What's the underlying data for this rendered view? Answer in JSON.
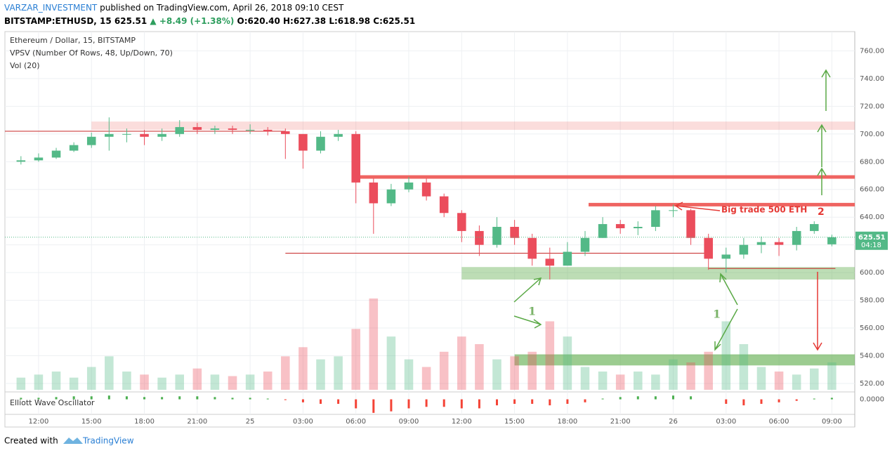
{
  "header": {
    "author": "VARZAR_INVESTMENT",
    "published": "published on TradingView.com, April 26, 2018 09:10 CEST",
    "symbol": "BITSTAMP:ETHUSD, 15",
    "last": "625.51",
    "change": "▲ +8.49 (+1.38%)",
    "ohlc": "O:620.40 H:627.38 L:618.98 C:625.51"
  },
  "legend": [
    "Ethereum / Dollar, 15, BITSTAMP",
    "VPSV (Number Of Rows, 48, Up/Down, 70)",
    "Vol (20)"
  ],
  "footer": {
    "created": "Created with",
    "brand": "TradingView"
  },
  "chart_data": {
    "type": "candlestick",
    "oscillator_title": "Elliott Wave Oscillator",
    "up_color": "#53b987",
    "down_color": "#eb4d5c",
    "x": [
      11,
      12,
      13,
      14,
      15,
      16,
      17,
      18,
      19,
      20,
      21,
      22,
      23,
      24,
      25,
      26,
      27,
      28,
      29,
      30,
      31,
      32,
      33,
      34,
      35,
      36,
      37,
      38,
      39,
      40,
      41,
      42,
      43,
      44,
      45,
      46,
      47,
      48,
      49,
      50,
      51,
      52,
      53,
      54,
      55,
      56,
      57
    ],
    "open": [
      680,
      681,
      683,
      688,
      692,
      698,
      700,
      700,
      698,
      700,
      705,
      703,
      704,
      703,
      703,
      702,
      700,
      688,
      698,
      700,
      665,
      650,
      660,
      665,
      655,
      643,
      630,
      620,
      633,
      625,
      610,
      605,
      615,
      625,
      635,
      632,
      633,
      645,
      645,
      625,
      610,
      613,
      620,
      622,
      620,
      630,
      620.4
    ],
    "high": [
      684,
      686,
      690,
      694,
      701,
      712,
      704,
      703,
      704,
      710,
      708,
      706,
      706,
      707,
      705,
      704,
      700,
      702,
      703,
      702,
      668,
      664,
      669,
      668,
      657,
      645,
      634,
      640,
      638,
      628,
      618,
      622,
      630,
      640,
      638,
      637,
      648,
      649,
      646,
      628,
      618,
      625,
      626,
      625,
      633,
      637,
      627.38
    ],
    "low": [
      678,
      680,
      682,
      687,
      690,
      688,
      694,
      692,
      695,
      698,
      700,
      700,
      700,
      700,
      699,
      682,
      675,
      686,
      695,
      650,
      628,
      648,
      658,
      652,
      640,
      622,
      612,
      618,
      620,
      605,
      595,
      605,
      612,
      625,
      628,
      627,
      630,
      640,
      620,
      602,
      600,
      610,
      614,
      612,
      616,
      628,
      618.98
    ],
    "close": [
      681,
      683,
      688,
      692,
      698,
      700,
      700,
      698,
      700,
      705,
      703,
      704,
      703,
      703,
      702,
      700,
      688,
      698,
      700,
      665,
      650,
      660,
      665,
      655,
      643,
      630,
      620,
      633,
      625,
      610,
      605,
      615,
      625,
      635,
      632,
      633,
      645,
      645,
      625,
      610,
      613,
      620,
      622,
      620,
      630,
      635,
      625.51
    ],
    "volume": [
      8,
      10,
      12,
      8,
      15,
      22,
      12,
      10,
      8,
      10,
      14,
      10,
      9,
      10,
      12,
      22,
      28,
      20,
      22,
      40,
      60,
      35,
      20,
      15,
      25,
      35,
      30,
      20,
      22,
      25,
      45,
      35,
      15,
      12,
      10,
      12,
      10,
      20,
      18,
      25,
      45,
      30,
      15,
      12,
      10,
      14,
      18
    ],
    "oscillator": [
      1,
      1,
      1.5,
      2,
      2,
      2.5,
      2,
      1.5,
      1.5,
      2,
      2,
      1.5,
      1,
      1,
      0.5,
      -0.5,
      -2,
      -3,
      -3,
      -6,
      -9,
      -8,
      -6,
      -5,
      -5,
      -6,
      -6,
      -4,
      -3,
      -3,
      -4,
      -3,
      -2,
      0.5,
      1.5,
      2,
      2,
      2.5,
      2,
      0,
      -3,
      -4,
      -3,
      -2,
      -1,
      0.5,
      1
    ],
    "osc_ylim": [
      -10,
      4
    ],
    "osc_yticks": [
      {
        "value": 0,
        "label": "0.0000"
      }
    ],
    "last_price": {
      "value": 625.51,
      "label": "625.51",
      "countdown": "04:18"
    },
    "xlim": [
      10.09,
      58.3
    ],
    "xticks": [
      {
        "value": 12,
        "label": "12:00"
      },
      {
        "value": 15,
        "label": "15:00"
      },
      {
        "value": 18,
        "label": "18:00"
      },
      {
        "value": 21,
        "label": "21:00"
      },
      {
        "value": 24,
        "label": "25"
      },
      {
        "value": 27,
        "label": "03:00"
      },
      {
        "value": 30,
        "label": "06:00"
      },
      {
        "value": 33,
        "label": "09:00"
      },
      {
        "value": 36,
        "label": "12:00"
      },
      {
        "value": 39,
        "label": "15:00"
      },
      {
        "value": 42,
        "label": "18:00"
      },
      {
        "value": 45,
        "label": "21:00"
      },
      {
        "value": 48,
        "label": "26"
      },
      {
        "value": 51,
        "label": "03:00"
      },
      {
        "value": 54,
        "label": "06:00"
      },
      {
        "value": 57,
        "label": "09:00"
      }
    ],
    "ylim": [
      513.9,
      773.9
    ],
    "yticks": [
      {
        "value": 520,
        "label": "520.00"
      },
      {
        "value": 540,
        "label": "540.00"
      },
      {
        "value": 560,
        "label": "560.00"
      },
      {
        "value": 580,
        "label": "580.00"
      },
      {
        "value": 600,
        "label": "600.00"
      },
      {
        "value": 620,
        "label": "620.00"
      },
      {
        "value": 640,
        "label": "640.00"
      },
      {
        "value": 660,
        "label": "660.00"
      },
      {
        "value": 680,
        "label": "680.00"
      },
      {
        "value": 700,
        "label": "700.00"
      },
      {
        "value": 720,
        "label": "720.00"
      },
      {
        "value": 740,
        "label": "740.00"
      },
      {
        "value": 760,
        "label": "760.00"
      }
    ],
    "grid": true,
    "levels": [
      {
        "price": 702,
        "from": 10.09,
        "to": 26,
        "color": "#c62828",
        "width": 1
      },
      {
        "price": 669,
        "from": 30,
        "to": 58.3,
        "color": "#ef6461",
        "width": 5
      },
      {
        "price": 649,
        "from": 43.2,
        "to": 58.3,
        "color": "#ef6461",
        "width": 5
      },
      {
        "price": 614,
        "from": 26,
        "to": 50,
        "color": "#c62828",
        "width": 1
      },
      {
        "price": 603,
        "from": 50,
        "to": 57.2,
        "color": "#c62828",
        "width": 1
      }
    ],
    "zones": [
      {
        "low": 703,
        "high": 709,
        "from": 15,
        "to": 58.3,
        "color": "rgba(239,100,97,0.22)"
      },
      {
        "low": 595,
        "high": 604,
        "from": 36,
        "to": 58.3,
        "color": "rgba(90,170,70,0.4)"
      },
      {
        "low": 533,
        "high": 541,
        "from": 39,
        "to": 58.3,
        "color": "rgba(90,170,70,0.6)"
      }
    ],
    "annotations": [
      "Big trade 500 ETH",
      "2",
      "1",
      "1"
    ]
  }
}
